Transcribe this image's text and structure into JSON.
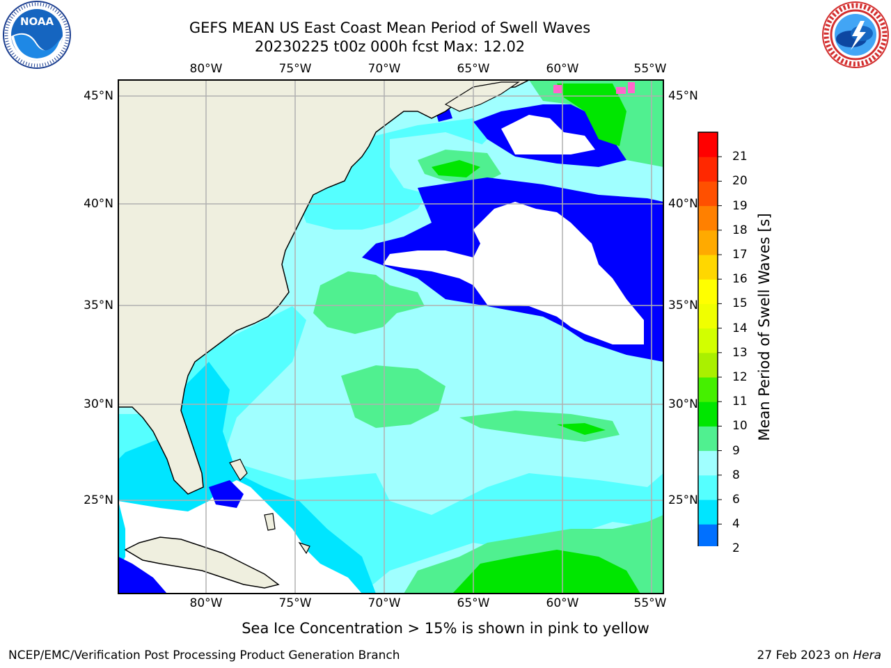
{
  "header": {
    "title_line1": "GEFS MEAN US East Coast Mean Period of Swell Waves",
    "title_line2": "20230225 t00z 000h fcst   Max: 12.02"
  },
  "logos": {
    "left": {
      "name": "NOAA",
      "icon": "noaa-logo-icon",
      "ring_text": "NATIONAL OCEANIC AND ATMOSPHERIC ADMINISTRATION · U.S. DEPARTMENT OF COMMERCE"
    },
    "right": {
      "name": "National Weather Service",
      "icon": "nws-logo-icon",
      "ring_text": "NATIONAL WEATHER SERVICE"
    }
  },
  "map": {
    "lon_labels": [
      "80°W",
      "75°W",
      "70°W",
      "65°W",
      "60°W",
      "55°W"
    ],
    "lat_labels": [
      "45°N",
      "40°N",
      "35°N",
      "30°N",
      "25°N"
    ],
    "land_color": "#efefdf",
    "no_data_color": "#ffffff"
  },
  "colorbar": {
    "label": "Mean Period of Swell Waves [s]",
    "ticks": [
      "2",
      "4",
      "6",
      "8",
      "9",
      "10",
      "11",
      "12",
      "13",
      "14",
      "15",
      "16",
      "17",
      "18",
      "19",
      "20",
      "21"
    ],
    "colors": [
      "#0000ff",
      "#0070ff",
      "#00e5ff",
      "#55ffff",
      "#a0ffff",
      "#50f090",
      "#00e600",
      "#45f000",
      "#aaf000",
      "#d2ff00",
      "#f0ff00",
      "#ffff00",
      "#ffd700",
      "#ffaa00",
      "#ff8000",
      "#ff5000",
      "#ff2800",
      "#ff0000"
    ]
  },
  "notes": {
    "sea_ice": "Sea Ice Concentration > 15% is shown in pink to yellow",
    "footer_left": "NCEP/EMC/Verification Post Processing Product Generation Branch",
    "footer_date": "27 Feb 2023 on ",
    "footer_machine": "Hera"
  }
}
